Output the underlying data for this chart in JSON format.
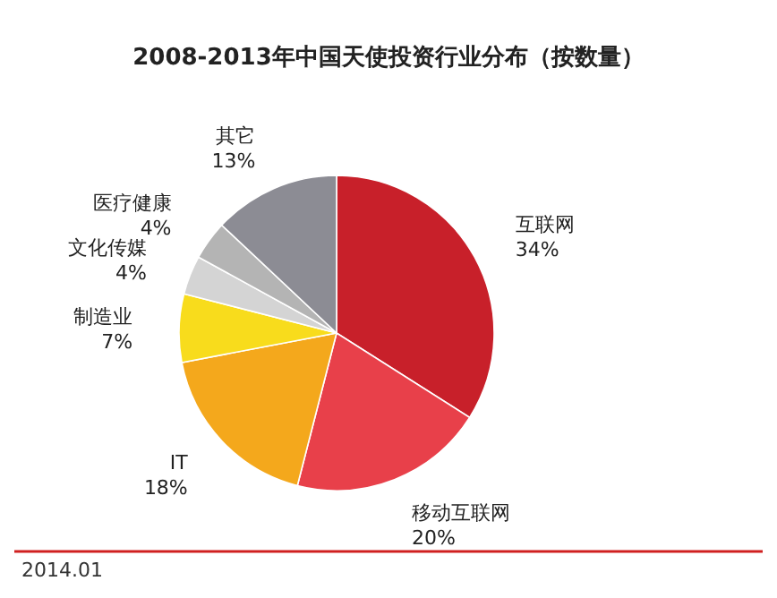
{
  "chart_data": {
    "type": "pie",
    "title": "2008-2013年中国天使投资行业分布（按数量）",
    "categories": [
      "互联网",
      "移动互联网",
      "IT",
      "制造业",
      "文化传媒",
      "医疗健康",
      "其它"
    ],
    "values": [
      34,
      20,
      18,
      7,
      4,
      4,
      13
    ],
    "value_labels": [
      "34%",
      "20%",
      "18%",
      "7%",
      "4%",
      "4%",
      "13%"
    ],
    "colors": [
      "#c8202a",
      "#e8404a",
      "#f4a81c",
      "#f8dc1c",
      "#d4d4d4",
      "#b4b4b4",
      "#8c8c94"
    ],
    "annotations": [
      "2014.01"
    ]
  }
}
